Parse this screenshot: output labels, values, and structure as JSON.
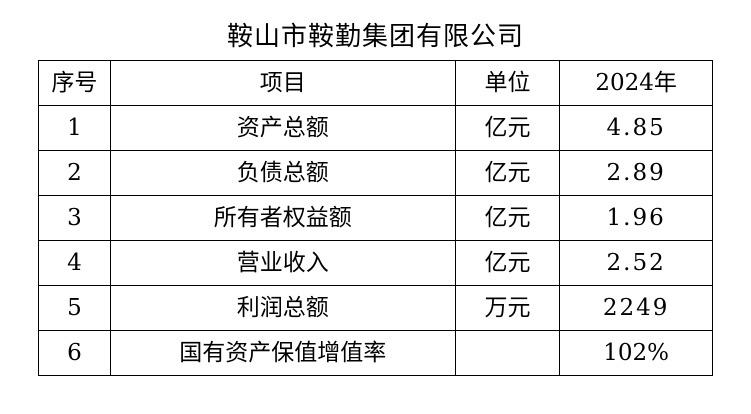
{
  "title": "鞍山市鞍勤集团有限公司",
  "table": {
    "headers": [
      "序号",
      "项目",
      "单位",
      "2024年"
    ],
    "rows": [
      [
        "1",
        "资产总额",
        "亿元",
        "4.85"
      ],
      [
        "2",
        "负债总额",
        "亿元",
        "2.89"
      ],
      [
        "3",
        "所有者权益额",
        "亿元",
        "1.96"
      ],
      [
        "4",
        "营业收入",
        "亿元",
        "2.52"
      ],
      [
        "5",
        "利润总额",
        "万元",
        "2249"
      ],
      [
        "6",
        "国有资产保值增值率",
        "",
        "102%"
      ]
    ]
  }
}
